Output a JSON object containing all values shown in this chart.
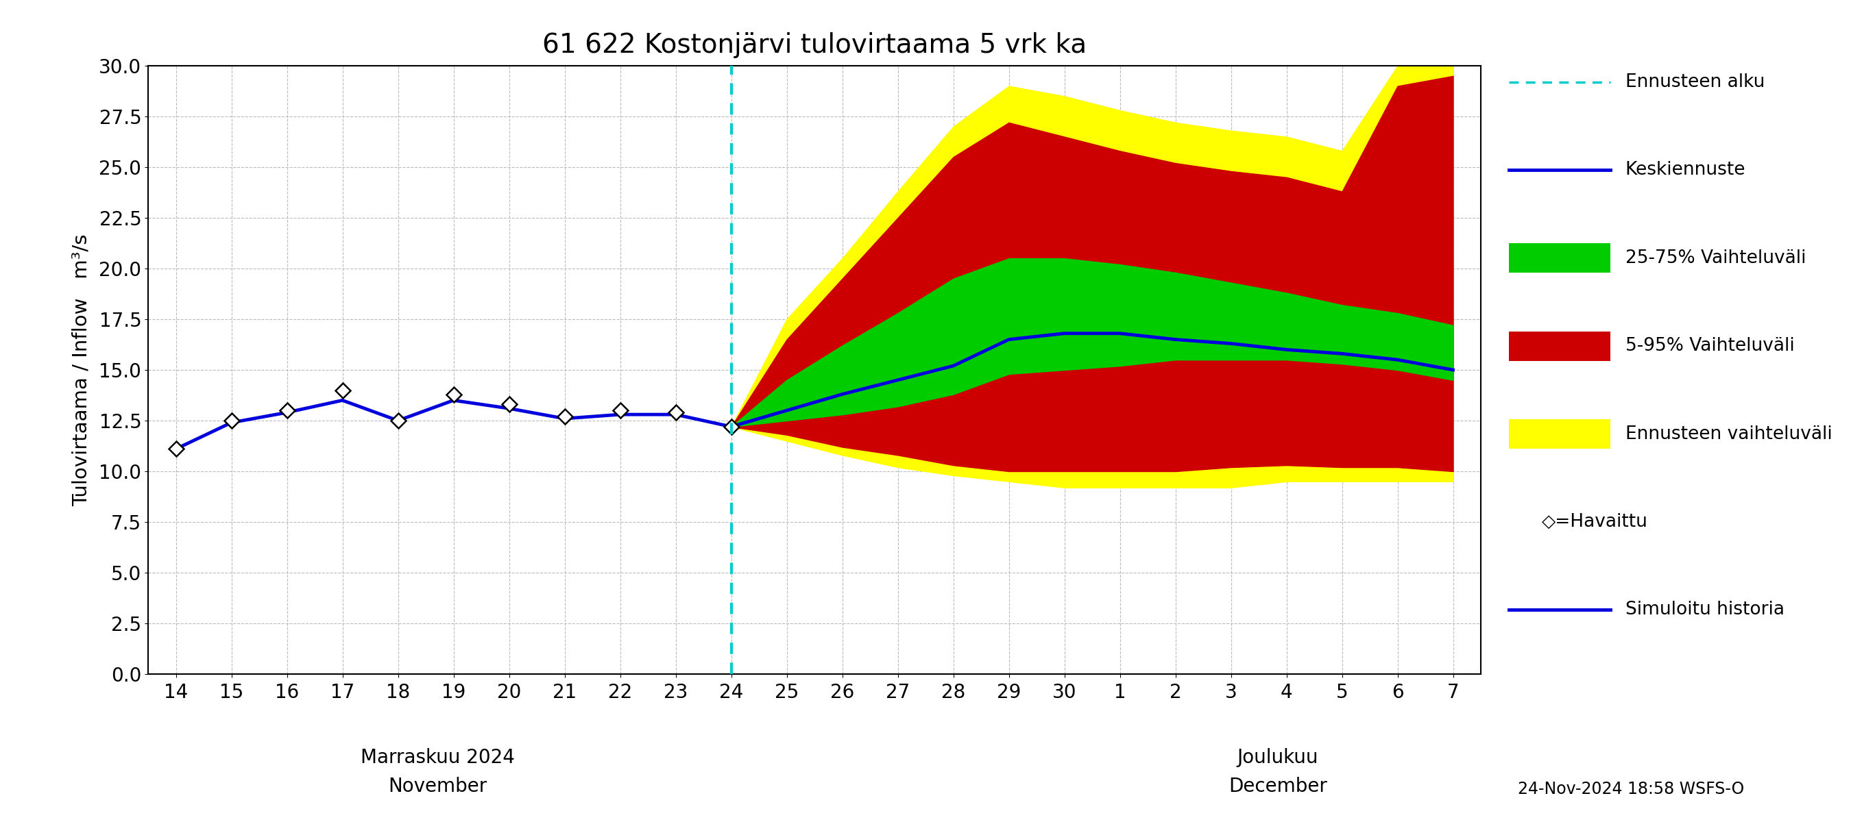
{
  "title": "61 622 Kostonjärvi tulovirtaama 5 vrk ka",
  "ylabel": "Tulovirtaama / Inflow   m³/s",
  "ylim": [
    0.0,
    30.0
  ],
  "yticks": [
    0.0,
    2.5,
    5.0,
    7.5,
    10.0,
    12.5,
    15.0,
    17.5,
    20.0,
    22.5,
    25.0,
    27.5,
    30.0
  ],
  "footer": "24-Nov-2024 18:58 WSFS-O",
  "obs_x": [
    0,
    1,
    2,
    3,
    4,
    5,
    6,
    7,
    8,
    9,
    10
  ],
  "obs_y": [
    11.1,
    12.5,
    13.0,
    14.0,
    12.5,
    13.8,
    13.3,
    12.7,
    13.0,
    12.9,
    12.2
  ],
  "sim_x": [
    0,
    1,
    2,
    3,
    4,
    5,
    6,
    7,
    8,
    9,
    10
  ],
  "sim_y": [
    11.1,
    12.4,
    12.9,
    13.5,
    12.5,
    13.5,
    13.1,
    12.6,
    12.8,
    12.8,
    12.2
  ],
  "fc_x": [
    10,
    11,
    12,
    13,
    14,
    15,
    16,
    17,
    18,
    19,
    20,
    21,
    22,
    23
  ],
  "median_y": [
    12.2,
    13.0,
    13.8,
    14.5,
    15.2,
    16.5,
    16.8,
    16.8,
    16.5,
    16.3,
    16.0,
    15.8,
    15.5,
    15.0
  ],
  "p25_y": [
    12.2,
    12.5,
    12.8,
    13.2,
    13.8,
    14.8,
    15.0,
    15.2,
    15.5,
    15.5,
    15.5,
    15.3,
    15.0,
    14.5
  ],
  "p75_y": [
    12.2,
    14.5,
    16.2,
    17.8,
    19.5,
    20.5,
    20.5,
    20.2,
    19.8,
    19.3,
    18.8,
    18.2,
    17.8,
    17.2
  ],
  "p05_y": [
    12.2,
    11.8,
    11.2,
    10.8,
    10.3,
    10.0,
    10.0,
    10.0,
    10.0,
    10.2,
    10.3,
    10.2,
    10.2,
    10.0
  ],
  "p95_y": [
    12.2,
    16.5,
    19.5,
    22.5,
    25.5,
    27.2,
    26.5,
    25.8,
    25.2,
    24.8,
    24.5,
    23.8,
    29.0,
    29.5
  ],
  "en_low": [
    12.2,
    11.5,
    10.8,
    10.2,
    9.8,
    9.5,
    9.2,
    9.2,
    9.2,
    9.2,
    9.5,
    9.5,
    9.5,
    9.5
  ],
  "en_high": [
    12.2,
    17.5,
    20.5,
    23.8,
    27.0,
    29.0,
    28.5,
    27.8,
    27.2,
    26.8,
    26.5,
    25.8,
    30.0,
    30.0
  ],
  "tick_labels": [
    "14",
    "15",
    "16",
    "17",
    "18",
    "19",
    "20",
    "21",
    "22",
    "23",
    "24",
    "25",
    "26",
    "27",
    "28",
    "29",
    "30",
    "1",
    "2",
    "3",
    "4",
    "5",
    "6",
    "7"
  ],
  "color_median": "#0000dd",
  "color_25_75": "#00cc00",
  "color_5_95": "#cc0000",
  "color_ennuste": "#ffff00",
  "color_sim": "#0000dd",
  "color_vline": "#00cccc",
  "background": "#ffffff",
  "grid_color": "#bbbbbb"
}
